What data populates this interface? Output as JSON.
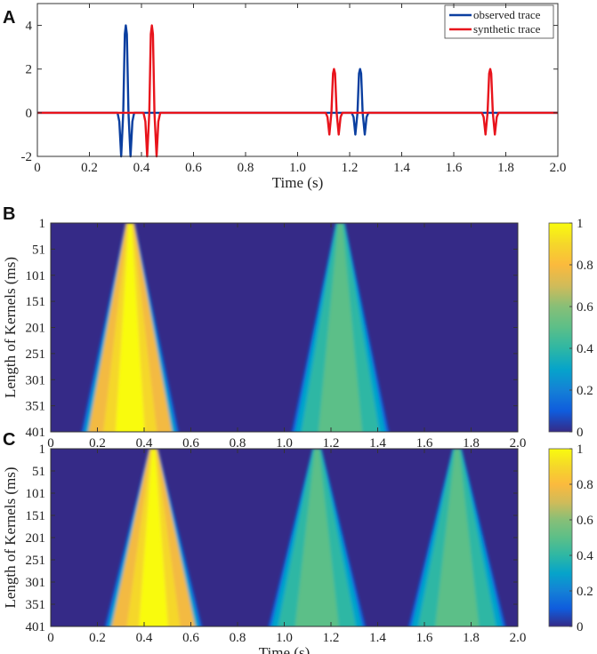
{
  "colors": {
    "observed": "#0b3fa0",
    "synthetic": "#e8141c",
    "heatmap_background": "#352a87"
  },
  "chart_data": [
    {
      "panel_label": "A",
      "type": "line",
      "xlabel": "Time (s)",
      "ylabel": "",
      "xlim": [
        0,
        2.0
      ],
      "ylim": [
        -2,
        5
      ],
      "x_ticks": [
        0,
        0.2,
        0.4,
        0.6,
        0.8,
        1.0,
        1.2,
        1.4,
        1.6,
        1.8,
        2.0
      ],
      "x_tick_labels": [
        "0",
        "0.2",
        "0.4",
        "0.6",
        "0.8",
        "1.0",
        "1.2",
        "1.4",
        "1.6",
        "1.8",
        "2.0"
      ],
      "y_ticks": [
        -2,
        0,
        2,
        4
      ],
      "y_tick_labels": [
        "-2",
        "0",
        "2",
        "4"
      ],
      "legend_position": "top-right",
      "grid": false,
      "series": [
        {
          "name": "observed trace",
          "color": "#0b3fa0",
          "wavelets": [
            {
              "time": 0.34,
              "amplitude": 4
            },
            {
              "time": 1.24,
              "amplitude": 2
            }
          ]
        },
        {
          "name": "synthetic trace",
          "color": "#e8141c",
          "wavelets": [
            {
              "time": 0.44,
              "amplitude": 4
            },
            {
              "time": 1.14,
              "amplitude": 2
            },
            {
              "time": 1.74,
              "amplitude": 2
            }
          ]
        }
      ]
    },
    {
      "panel_label": "B",
      "type": "heatmap",
      "xlabel": "Time (s)",
      "ylabel": "Length of Kernels (ms)",
      "xlim": [
        0,
        2.0
      ],
      "ylim": [
        1,
        401
      ],
      "y_reversed": true,
      "x_ticks": [
        0,
        0.2,
        0.4,
        0.6,
        0.8,
        1.0,
        1.2,
        1.4,
        1.6,
        1.8,
        2.0
      ],
      "x_tick_labels": [
        "0",
        "0.2",
        "0.4",
        "0.6",
        "0.8",
        "1.0",
        "1.2",
        "1.4",
        "1.6",
        "1.8",
        "2.0"
      ],
      "y_ticks": [
        1,
        51,
        101,
        151,
        201,
        251,
        301,
        351,
        401
      ],
      "y_tick_labels": [
        "1",
        "51",
        "101",
        "151",
        "201",
        "251",
        "301",
        "351",
        "401"
      ],
      "colormap": "parula",
      "clim": [
        0,
        1
      ],
      "colorbar_ticks": [
        0,
        0.2,
        0.4,
        0.6,
        0.8,
        1
      ],
      "colorbar_tick_labels": [
        "0",
        "0.2",
        "0.4",
        "0.6",
        "0.8",
        "1"
      ],
      "regions": [
        {
          "apex_time": 0.34,
          "base_start": 0.13,
          "base_end": 0.55,
          "peak_value": 1.0
        },
        {
          "apex_time": 1.24,
          "base_start": 1.03,
          "base_end": 1.45,
          "peak_value": 0.5
        }
      ]
    },
    {
      "panel_label": "C",
      "type": "heatmap",
      "xlabel": "Time (s)",
      "ylabel": "Length of Kernels (ms)",
      "xlim": [
        0,
        2.0
      ],
      "ylim": [
        1,
        401
      ],
      "y_reversed": true,
      "x_ticks": [
        0,
        0.2,
        0.4,
        0.6,
        0.8,
        1.0,
        1.2,
        1.4,
        1.6,
        1.8,
        2.0
      ],
      "x_tick_labels": [
        "0",
        "0.2",
        "0.4",
        "0.6",
        "0.8",
        "1.0",
        "1.2",
        "1.4",
        "1.6",
        "1.8",
        "2.0"
      ],
      "y_ticks": [
        1,
        51,
        101,
        151,
        201,
        251,
        301,
        351,
        401
      ],
      "y_tick_labels": [
        "1",
        "51",
        "101",
        "151",
        "201",
        "251",
        "301",
        "351",
        "401"
      ],
      "colormap": "parula",
      "clim": [
        0,
        1
      ],
      "colorbar_ticks": [
        0,
        0.2,
        0.4,
        0.6,
        0.8,
        1
      ],
      "colorbar_tick_labels": [
        "0",
        "0.2",
        "0.4",
        "0.6",
        "0.8",
        "1"
      ],
      "regions": [
        {
          "apex_time": 0.44,
          "base_start": 0.23,
          "base_end": 0.65,
          "peak_value": 1.0
        },
        {
          "apex_time": 1.14,
          "base_start": 0.93,
          "base_end": 1.35,
          "peak_value": 0.5
        },
        {
          "apex_time": 1.74,
          "base_start": 1.53,
          "base_end": 1.95,
          "peak_value": 0.5
        }
      ]
    }
  ]
}
